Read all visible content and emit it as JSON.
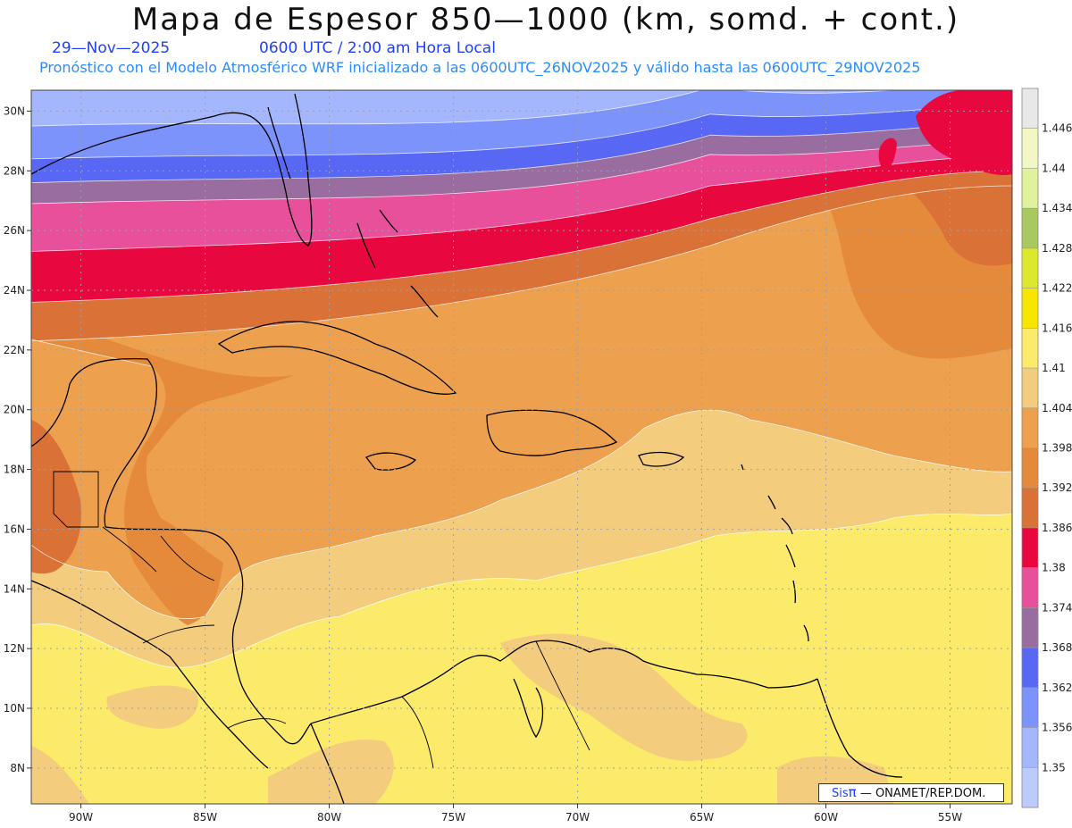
{
  "title": "Mapa de Espesor 850—1000 (km, somd. + cont.)",
  "valid_date": "29—Nov—2025",
  "valid_time": "0600 UTC / 2:00 am Hora Local",
  "subtitle": "Pronóstico con el Modelo Atmosférico WRF inicializado a las 0600UTC_26NOV2025 y válido hasta las  0600UTC_29NOV2025",
  "credit": {
    "brand": "Sis",
    "pi": "π",
    "rest": "— ONAMET/REP.DOM."
  },
  "map": {
    "lon_range": [
      -92,
      -52.5
    ],
    "lat_range": [
      6.8,
      30.7
    ],
    "lon_ticks": [
      {
        "value": -90,
        "label": "90W"
      },
      {
        "value": -85,
        "label": "85W"
      },
      {
        "value": -80,
        "label": "80W"
      },
      {
        "value": -75,
        "label": "75W"
      },
      {
        "value": -70,
        "label": "70W"
      },
      {
        "value": -65,
        "label": "65W"
      },
      {
        "value": -60,
        "label": "60W"
      },
      {
        "value": -55,
        "label": "55W"
      }
    ],
    "lat_ticks": [
      {
        "value": 30,
        "label": "30N"
      },
      {
        "value": 28,
        "label": "28N"
      },
      {
        "value": 26,
        "label": "26N"
      },
      {
        "value": 24,
        "label": "24N"
      },
      {
        "value": 22,
        "label": "22N"
      },
      {
        "value": 20,
        "label": "20N"
      },
      {
        "value": 18,
        "label": "18N"
      },
      {
        "value": 16,
        "label": "16N"
      },
      {
        "value": 14,
        "label": "14N"
      },
      {
        "value": 12,
        "label": "12N"
      },
      {
        "value": 10,
        "label": "10N"
      },
      {
        "value": 8,
        "label": "8N"
      }
    ],
    "grid": "dotted"
  },
  "colorbar": {
    "labels": [
      "1.446",
      "1.44",
      "1.434",
      "1.428",
      "1.422",
      "1.416",
      "1.41",
      "1.404",
      "1.398",
      "1.392",
      "1.386",
      "1.38",
      "1.374",
      "1.368",
      "1.362",
      "1.356",
      "1.35"
    ],
    "colors": [
      "#e8e8e8",
      "#f2f7c4",
      "#e0f29c",
      "#a8c95f",
      "#dce82e",
      "#f8e600",
      "#fcea6a",
      "#f3cd7d",
      "#eda04e",
      "#e58a3a",
      "#da7136",
      "#e8073e",
      "#e8509c",
      "#9a6da0",
      "#5868f5",
      "#7d93fc",
      "#a4b7fe",
      "#bccbfd"
    ]
  },
  "bands": [
    {
      "level_min": 1.356,
      "level_max": 1.362,
      "color": "#a4b7fe",
      "lat_west": 29.5,
      "lat_east": 30.9
    },
    {
      "level_min": 1.362,
      "level_max": 1.368,
      "color": "#7d93fc",
      "lat_west": 28.4,
      "lat_east": 30.2
    },
    {
      "level_min": 1.368,
      "level_max": 1.374,
      "color": "#5868f5",
      "lat_west": 27.6,
      "lat_east": 29.6
    },
    {
      "level_min": 1.374,
      "level_max": 1.38,
      "color": "#9a6da0",
      "lat_west": 26.9,
      "lat_east": 29.0
    },
    {
      "level_min": 1.38,
      "level_max": 1.386,
      "color": "#e8509c",
      "lat_west": 25.3,
      "lat_east": 28.5
    },
    {
      "level_min": 1.386,
      "level_max": 1.392,
      "color": "#e8073e",
      "lat_west": 23.6,
      "lat_east": 28.0
    },
    {
      "level_min": 1.392,
      "level_max": 1.398,
      "color": "#da7136",
      "lat_west": 22.3,
      "lat_east": 27.5
    }
  ]
}
